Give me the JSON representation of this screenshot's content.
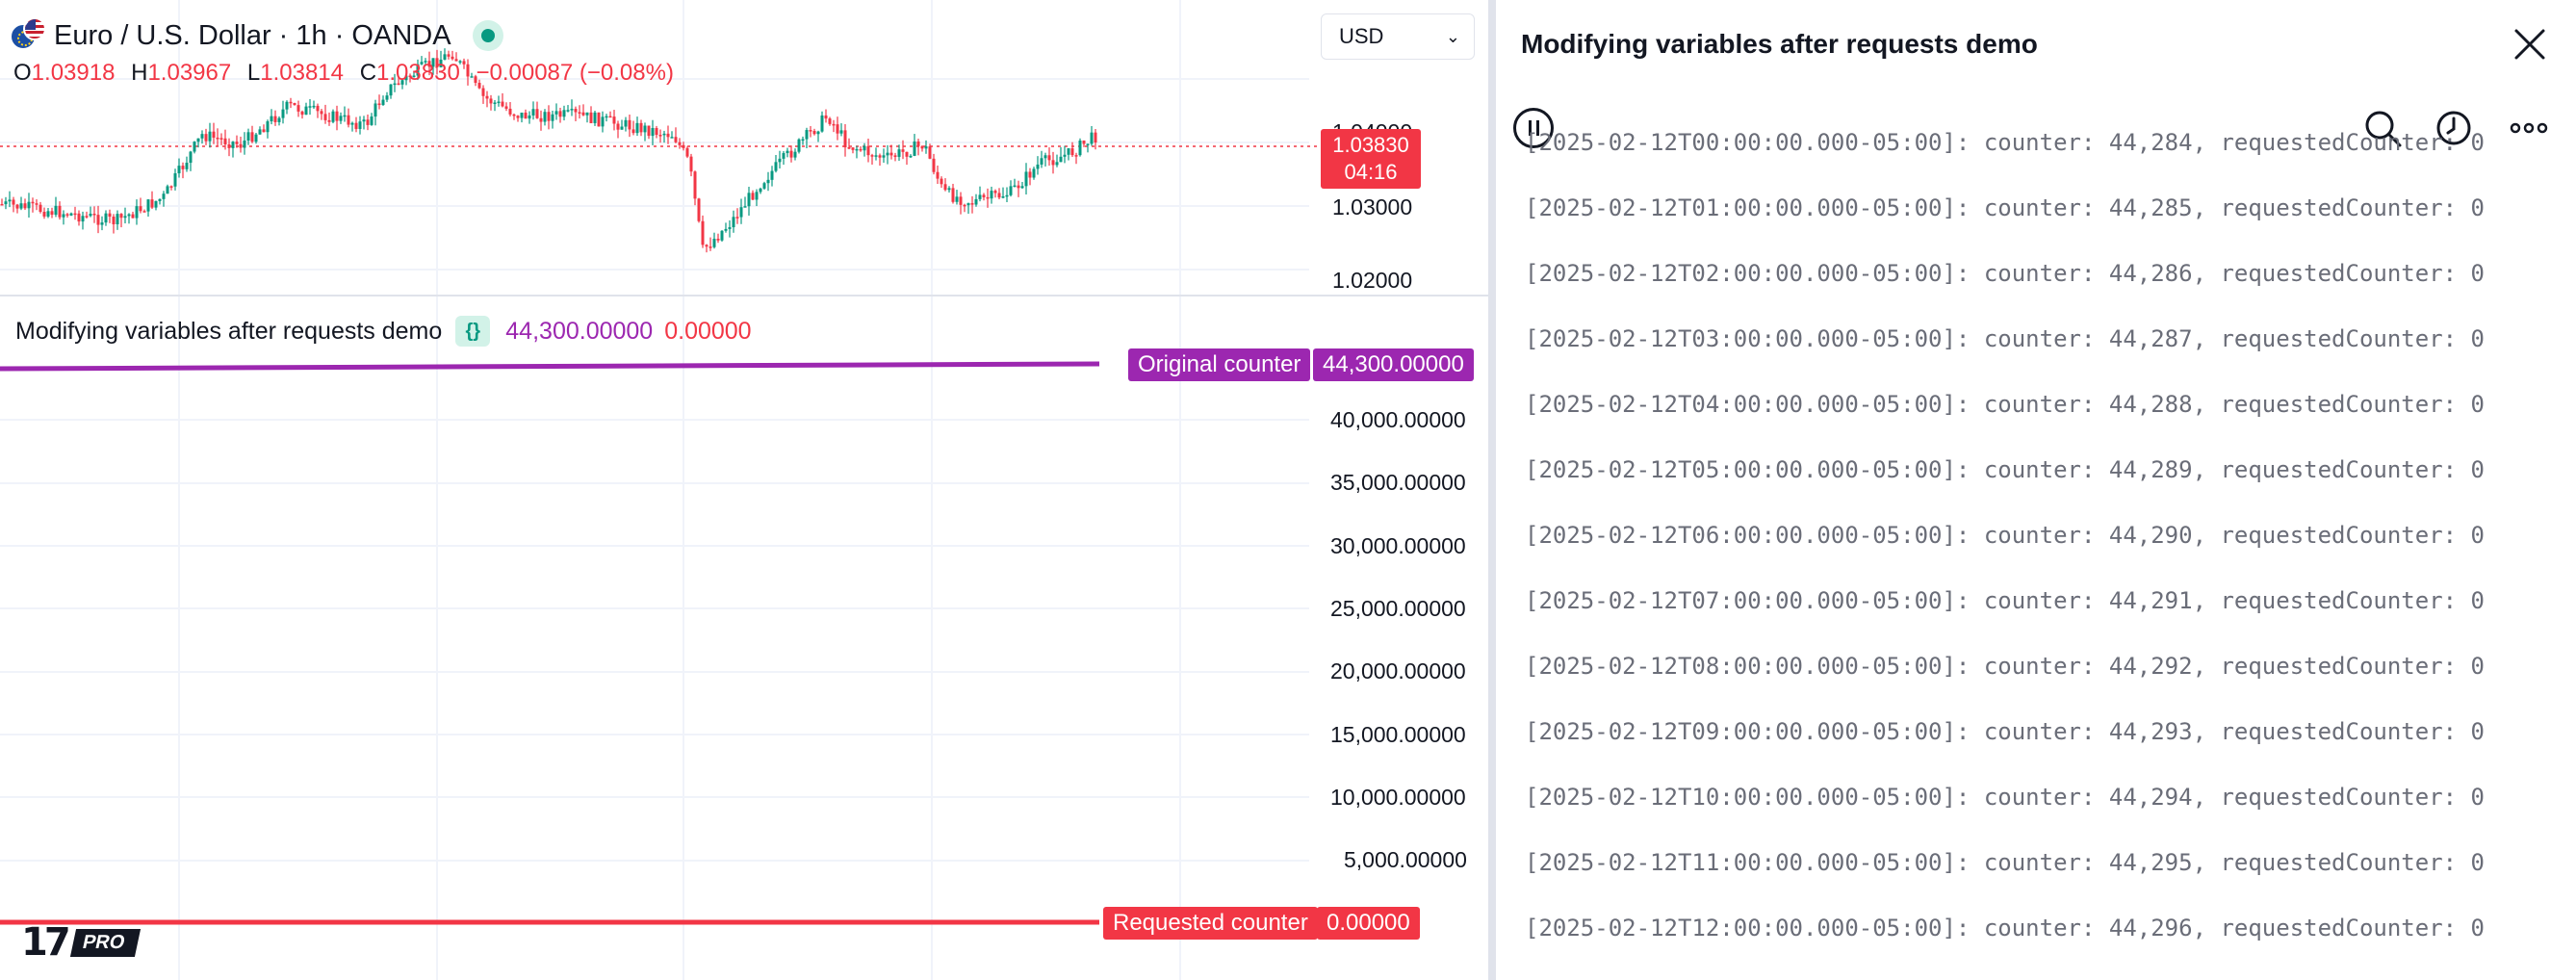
{
  "chart": {
    "symbol_title": "Euro / U.S. Dollar · 1h · OANDA",
    "currency": "USD",
    "ohlc": {
      "o_label": "O",
      "o": "1.03918",
      "h_label": "H",
      "h": "1.03967",
      "l_label": "L",
      "l": "1.03814",
      "c_label": "C",
      "c": "1.03830",
      "change": "−0.00087 (−0.08%)"
    },
    "price_badge": {
      "price": "1.03830",
      "countdown": "04:16"
    },
    "price_axis": [
      "1.04000",
      "1.03000",
      "1.02000"
    ],
    "colors": {
      "up": "#089981",
      "down": "#f23645",
      "purple": "#9c27b0",
      "red": "#f23645"
    }
  },
  "indicator": {
    "name": "Modifying variables after requests demo",
    "value_original": "44,300.00000",
    "value_requested": "0.00000",
    "original_tag": "Original counter",
    "original_tag_value": "44,300.00000",
    "requested_tag": "Requested counter",
    "requested_tag_value": "0.00000",
    "axis_labels": [
      "40,000.00000",
      "35,000.00000",
      "30,000.00000",
      "25,000.00000",
      "20,000.00000",
      "15,000.00000",
      "10,000.00000",
      "5,000.00000"
    ]
  },
  "logo": {
    "pro": "PRO"
  },
  "log_panel": {
    "title": "Modifying variables after requests demo",
    "lines": [
      "[2025-02-12T00:00:00.000-05:00]: counter: 44,284, requestedCounter: 0",
      "[2025-02-12T01:00:00.000-05:00]: counter: 44,285, requestedCounter: 0",
      "[2025-02-12T02:00:00.000-05:00]: counter: 44,286, requestedCounter: 0",
      "[2025-02-12T03:00:00.000-05:00]: counter: 44,287, requestedCounter: 0",
      "[2025-02-12T04:00:00.000-05:00]: counter: 44,288, requestedCounter: 0",
      "[2025-02-12T05:00:00.000-05:00]: counter: 44,289, requestedCounter: 0",
      "[2025-02-12T06:00:00.000-05:00]: counter: 44,290, requestedCounter: 0",
      "[2025-02-12T07:00:00.000-05:00]: counter: 44,291, requestedCounter: 0",
      "[2025-02-12T08:00:00.000-05:00]: counter: 44,292, requestedCounter: 0",
      "[2025-02-12T09:00:00.000-05:00]: counter: 44,293, requestedCounter: 0",
      "[2025-02-12T10:00:00.000-05:00]: counter: 44,294, requestedCounter: 0",
      "[2025-02-12T11:00:00.000-05:00]: counter: 44,295, requestedCounter: 0",
      "[2025-02-12T12:00:00.000-05:00]: counter: 44,296, requestedCounter: 0"
    ]
  }
}
